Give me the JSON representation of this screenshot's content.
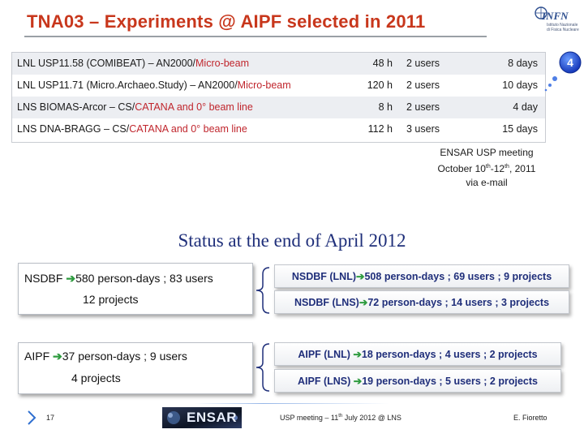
{
  "header": {
    "title": "TNA03 – Experiments @ AIPF selected in 2011",
    "logo": {
      "word": "INFN",
      "sub": "Istituto Nazionale di Fisica Nucleare",
      "icon": "infn-logo-icon"
    }
  },
  "experiments": [
    {
      "name_black": "LNL USP11.58 (COMIBEAT) – AN2000/",
      "name_red": "Micro-beam",
      "hours": "48 h",
      "users": "2 users",
      "days": "8  days"
    },
    {
      "name_black": "LNL USP11.71 (Micro.Archaeo.Study) – AN2000/",
      "name_red": "Micro-beam",
      "hours": "120 h",
      "users": "2 users",
      "days": "10 days"
    },
    {
      "name_black": "LNS BIOMAS-Arcor – CS/",
      "name_red": "CATANA and 0° beam line",
      "hours": "8 h",
      "users": "2 users",
      "days": "4 day"
    },
    {
      "name_black": "LNS DNA-BRAGG – CS/",
      "name_red": "CATANA and 0° beam line",
      "hours": "112 h",
      "users": "3 users",
      "days": "15 days"
    }
  ],
  "badge": {
    "value": "4",
    "color": "#1f4fd8"
  },
  "meeting_note": {
    "line1": "ENSAR USP meeting",
    "line2_a": "October 10",
    "line2_sup1": "th",
    "line2_b": "-12",
    "line2_sup2": "th",
    "line2_c": ", 2011",
    "line3": "via e-mail"
  },
  "status_title": "Status at the end of April 2012",
  "nsdbf": {
    "left_line1_a": "NSDBF ",
    "left_line1_b": "580 person-days ; 83 users",
    "left_line2": "12 projects",
    "right": [
      {
        "a": "NSDBF (LNL)",
        "b": "508 person-days ; 69 users ; 9 projects"
      },
      {
        "a": "NSDBF (LNS)",
        "b": "72 person-days ; 14 users ; 3 projects"
      }
    ]
  },
  "aipf": {
    "left_line1_a": "AIPF ",
    "left_line1_b": "37 person-days ; 9 users",
    "left_line2": "4 projects",
    "right": [
      {
        "a": "AIPF (LNL) ",
        "b": "18 person-days ; 4 users ; 2 projects"
      },
      {
        "a": "AIPF (LNS) ",
        "b": "19 person-days ; 5 users ; 2 projects"
      }
    ]
  },
  "arrow_glyph": "➔",
  "footer": {
    "page": "17",
    "ensar_word": "ENSAR",
    "meeting_a": "USP meeting – 11",
    "meeting_sup": "th",
    "meeting_b": " July 2012 @ LNS",
    "author": "E. Fioretto"
  },
  "colors": {
    "title": "#c8371c",
    "status": "#1f2f7a",
    "arrow": "#2e9b3f",
    "footer_line": "#2f6fd0"
  }
}
